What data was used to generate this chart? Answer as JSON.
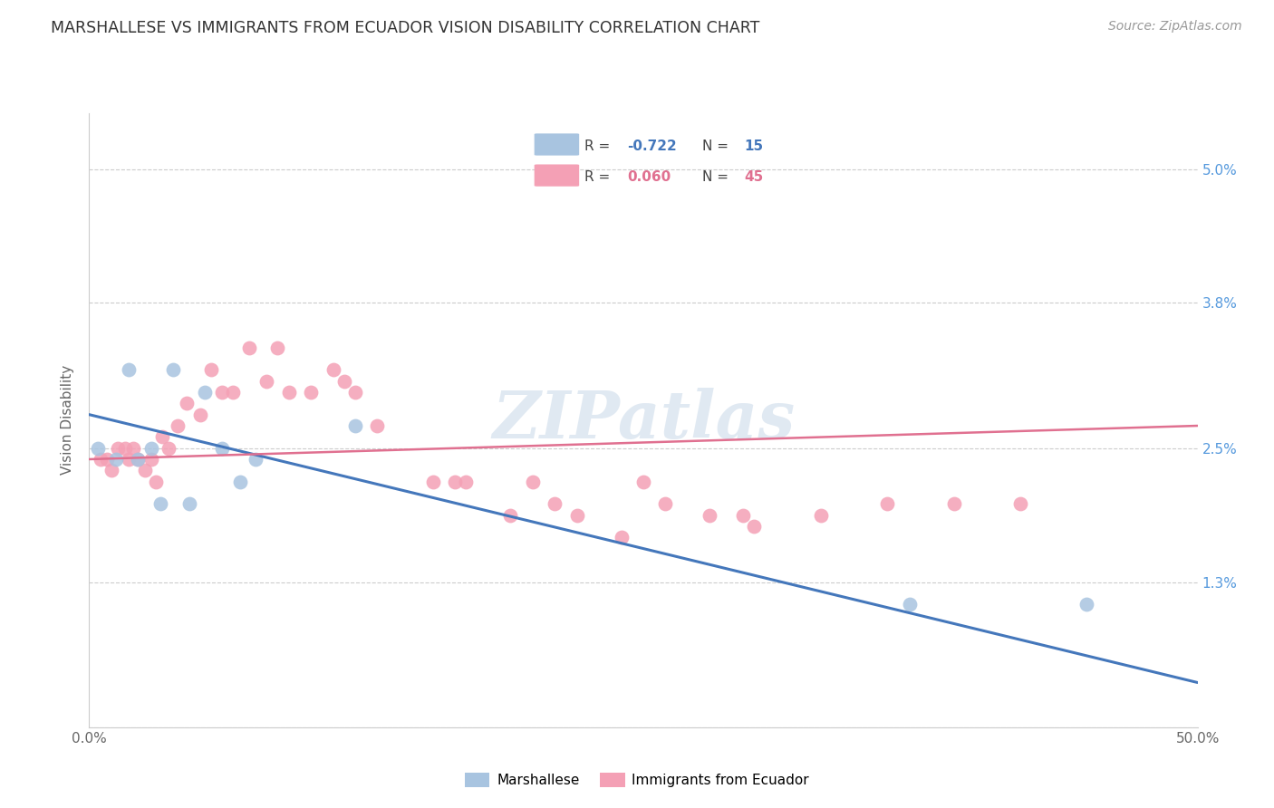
{
  "title": "MARSHALLESE VS IMMIGRANTS FROM ECUADOR VISION DISABILITY CORRELATION CHART",
  "source": "Source: ZipAtlas.com",
  "ylabel": "Vision Disability",
  "xlabel": "",
  "xlim": [
    0.0,
    0.5
  ],
  "ylim": [
    0.0,
    0.055
  ],
  "xticks": [
    0.0,
    0.1,
    0.2,
    0.3,
    0.4,
    0.5
  ],
  "xticklabels": [
    "0.0%",
    "",
    "",
    "",
    "",
    "50.0%"
  ],
  "yticks_right": [
    0.0,
    0.013,
    0.025,
    0.038,
    0.05
  ],
  "yticklabels_right": [
    "",
    "1.3%",
    "2.5%",
    "3.8%",
    "5.0%"
  ],
  "legend_r_blue": "-0.722",
  "legend_n_blue": "15",
  "legend_r_pink": "0.060",
  "legend_n_pink": "45",
  "blue_color": "#a8c4e0",
  "pink_color": "#f4a0b5",
  "blue_line_color": "#4477bb",
  "pink_line_color": "#e07090",
  "watermark": "ZIPatlas",
  "blue_scatter_x": [
    0.004,
    0.012,
    0.018,
    0.022,
    0.028,
    0.032,
    0.038,
    0.045,
    0.052,
    0.06,
    0.068,
    0.075,
    0.12,
    0.37,
    0.45
  ],
  "blue_scatter_y": [
    0.025,
    0.024,
    0.032,
    0.024,
    0.025,
    0.02,
    0.032,
    0.02,
    0.03,
    0.025,
    0.022,
    0.024,
    0.027,
    0.011,
    0.011
  ],
  "pink_scatter_x": [
    0.005,
    0.008,
    0.01,
    0.013,
    0.016,
    0.018,
    0.02,
    0.022,
    0.025,
    0.028,
    0.03,
    0.033,
    0.036,
    0.04,
    0.044,
    0.05,
    0.055,
    0.06,
    0.065,
    0.072,
    0.08,
    0.085,
    0.09,
    0.1,
    0.11,
    0.115,
    0.12,
    0.13,
    0.155,
    0.165,
    0.17,
    0.19,
    0.2,
    0.21,
    0.22,
    0.24,
    0.25,
    0.26,
    0.28,
    0.295,
    0.3,
    0.33,
    0.36,
    0.39,
    0.42
  ],
  "pink_scatter_y": [
    0.024,
    0.024,
    0.023,
    0.025,
    0.025,
    0.024,
    0.025,
    0.024,
    0.023,
    0.024,
    0.022,
    0.026,
    0.025,
    0.027,
    0.029,
    0.028,
    0.032,
    0.03,
    0.03,
    0.034,
    0.031,
    0.034,
    0.03,
    0.03,
    0.032,
    0.031,
    0.03,
    0.027,
    0.022,
    0.022,
    0.022,
    0.019,
    0.022,
    0.02,
    0.019,
    0.017,
    0.022,
    0.02,
    0.019,
    0.019,
    0.018,
    0.019,
    0.02,
    0.02,
    0.02
  ],
  "blue_line_x0": 0.0,
  "blue_line_y0": 0.028,
  "blue_line_x1": 0.5,
  "blue_line_y1": 0.004,
  "pink_line_x0": 0.0,
  "pink_line_y0": 0.024,
  "pink_line_x1": 0.5,
  "pink_line_y1": 0.027
}
